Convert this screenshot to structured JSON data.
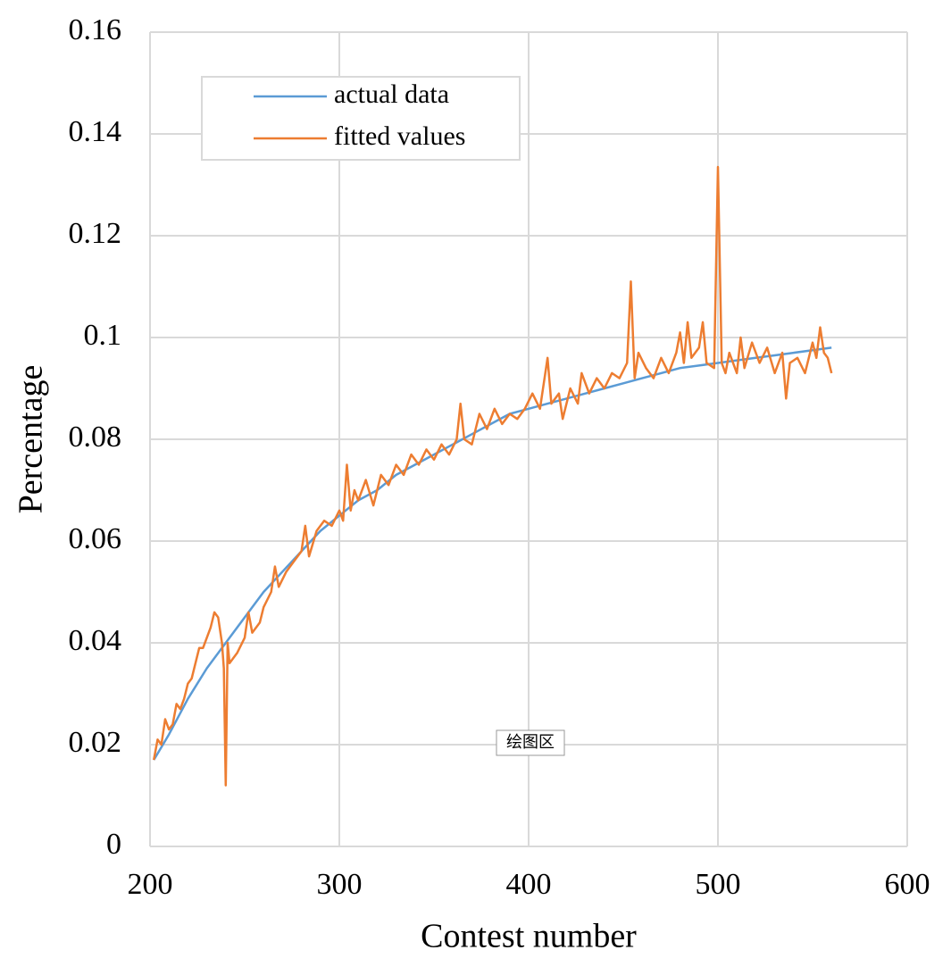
{
  "chart_data": {
    "type": "line",
    "xlabel": "Contest number",
    "ylabel": "Percentage",
    "annotation": "绘图区",
    "xlim": [
      200,
      600
    ],
    "xticks": [
      200,
      300,
      400,
      500,
      600
    ],
    "ylim": [
      0,
      0.16
    ],
    "yticks": [
      0,
      0.02,
      0.04,
      0.06,
      0.08,
      0.1,
      0.12,
      0.14,
      0.16
    ],
    "grid": true,
    "legend": "upper left",
    "series": [
      {
        "name": "actual data",
        "color": "#5b9bd5",
        "x": [
          202,
          210,
          220,
          230,
          240,
          250,
          260,
          270,
          280,
          290,
          300,
          310,
          320,
          330,
          340,
          350,
          360,
          370,
          380,
          390,
          400,
          410,
          420,
          430,
          440,
          450,
          460,
          470,
          480,
          490,
          500,
          510,
          520,
          530,
          540,
          550,
          560
        ],
        "values": [
          0.017,
          0.022,
          0.029,
          0.035,
          0.04,
          0.045,
          0.05,
          0.054,
          0.058,
          0.062,
          0.065,
          0.068,
          0.07,
          0.073,
          0.075,
          0.077,
          0.079,
          0.081,
          0.083,
          0.085,
          0.086,
          0.087,
          0.088,
          0.089,
          0.09,
          0.091,
          0.092,
          0.093,
          0.094,
          0.0945,
          0.095,
          0.0955,
          0.096,
          0.0965,
          0.097,
          0.0975,
          0.098
        ]
      },
      {
        "name": "fitted values",
        "color": "#ed7d31",
        "x": [
          202,
          204,
          206,
          208,
          210,
          212,
          214,
          216,
          218,
          220,
          222,
          224,
          226,
          228,
          230,
          232,
          234,
          236,
          238,
          239,
          240,
          241,
          242,
          246,
          250,
          252,
          254,
          258,
          260,
          264,
          266,
          268,
          272,
          276,
          280,
          282,
          284,
          288,
          292,
          296,
          300,
          302,
          304,
          306,
          308,
          310,
          314,
          318,
          322,
          326,
          330,
          334,
          338,
          342,
          346,
          350,
          354,
          358,
          362,
          364,
          366,
          370,
          374,
          378,
          382,
          386,
          390,
          394,
          398,
          402,
          406,
          408,
          410,
          412,
          416,
          418,
          422,
          426,
          428,
          432,
          436,
          440,
          444,
          448,
          452,
          454,
          456,
          458,
          462,
          466,
          470,
          474,
          478,
          480,
          482,
          484,
          486,
          490,
          492,
          494,
          498,
          500,
          502,
          504,
          506,
          510,
          512,
          514,
          518,
          522,
          526,
          530,
          534,
          536,
          538,
          542,
          546,
          550,
          552,
          554,
          556,
          558,
          560
        ],
        "values": [
          0.017,
          0.021,
          0.02,
          0.025,
          0.023,
          0.024,
          0.028,
          0.027,
          0.029,
          0.032,
          0.033,
          0.036,
          0.039,
          0.039,
          0.041,
          0.043,
          0.046,
          0.045,
          0.04,
          0.035,
          0.012,
          0.04,
          0.036,
          0.038,
          0.041,
          0.046,
          0.042,
          0.044,
          0.047,
          0.05,
          0.055,
          0.051,
          0.054,
          0.056,
          0.058,
          0.063,
          0.057,
          0.062,
          0.064,
          0.063,
          0.066,
          0.064,
          0.075,
          0.066,
          0.07,
          0.068,
          0.072,
          0.067,
          0.073,
          0.071,
          0.075,
          0.073,
          0.077,
          0.075,
          0.078,
          0.076,
          0.079,
          0.077,
          0.08,
          0.087,
          0.08,
          0.079,
          0.085,
          0.082,
          0.086,
          0.083,
          0.085,
          0.084,
          0.086,
          0.089,
          0.086,
          0.091,
          0.096,
          0.087,
          0.089,
          0.084,
          0.09,
          0.087,
          0.093,
          0.089,
          0.092,
          0.09,
          0.093,
          0.092,
          0.095,
          0.111,
          0.092,
          0.097,
          0.094,
          0.092,
          0.096,
          0.093,
          0.097,
          0.101,
          0.095,
          0.103,
          0.096,
          0.098,
          0.103,
          0.095,
          0.094,
          0.1335,
          0.095,
          0.093,
          0.097,
          0.093,
          0.1,
          0.094,
          0.099,
          0.095,
          0.098,
          0.093,
          0.097,
          0.088,
          0.095,
          0.096,
          0.093,
          0.099,
          0.096,
          0.102,
          0.097,
          0.096,
          0.093
        ]
      }
    ]
  }
}
